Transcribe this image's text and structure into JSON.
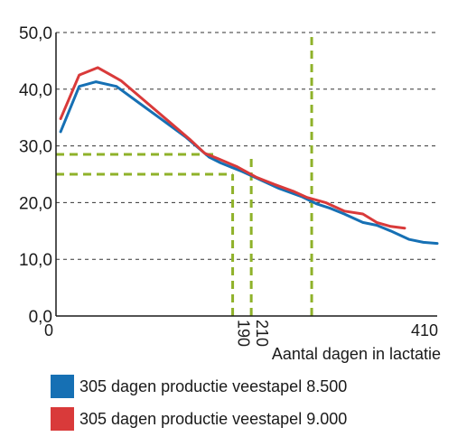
{
  "chart_data": {
    "type": "line",
    "xlabel": "Aantal dagen in lactatie",
    "ylabel": "",
    "xlim": [
      0,
      410
    ],
    "ylim": [
      0,
      50
    ],
    "y_ticks": [
      "0,0",
      "10,0",
      "20,0",
      "30,0",
      "40,0",
      "50,0"
    ],
    "x_ticks": [
      {
        "value": 0,
        "label": "0",
        "rotated": false
      },
      {
        "value": 190,
        "label": "190",
        "rotated": true
      },
      {
        "value": 210,
        "label": "210",
        "rotated": true
      },
      {
        "value": 410,
        "label": "410",
        "rotated": false
      }
    ],
    "grid": "horizontal-dashed",
    "series": [
      {
        "name": "305 dagen productie veestapel 8.500",
        "color": "#1670b4",
        "x": [
          5,
          25,
          43,
          65,
          90,
          115,
          140,
          165,
          177,
          200,
          220,
          240,
          265,
          280,
          295,
          310,
          330,
          345,
          360,
          380,
          395,
          410
        ],
        "y": [
          32.5,
          40.5,
          41.3,
          40.5,
          37.5,
          34.5,
          31.5,
          28.0,
          27.0,
          25.5,
          24.0,
          22.5,
          21.0,
          19.8,
          19.0,
          18.0,
          16.5,
          16.0,
          15.0,
          13.5,
          13.0,
          12.8
        ]
      },
      {
        "name": "305 dagen productie veestapel 9.000",
        "color": "#d93a3a",
        "x": [
          5,
          25,
          45,
          70,
          95,
          120,
          145,
          160,
          175,
          195,
          215,
          235,
          255,
          270,
          290,
          310,
          330,
          345,
          360,
          375
        ],
        "y": [
          34.8,
          42.5,
          43.8,
          41.5,
          38.0,
          34.5,
          31.0,
          28.7,
          27.7,
          26.3,
          24.5,
          23.2,
          22.0,
          20.9,
          20.0,
          18.5,
          18.0,
          16.5,
          15.8,
          15.5
        ]
      }
    ],
    "annotations": {
      "color": "#8fb22a",
      "vertical": [
        {
          "x": 190,
          "y": 25
        },
        {
          "x": 210,
          "y": 28.5
        },
        {
          "x": 275,
          "y": 50
        }
      ],
      "horizontal": [
        {
          "y": 28.5,
          "x": 170
        },
        {
          "y": 25,
          "x": 190
        }
      ]
    }
  }
}
